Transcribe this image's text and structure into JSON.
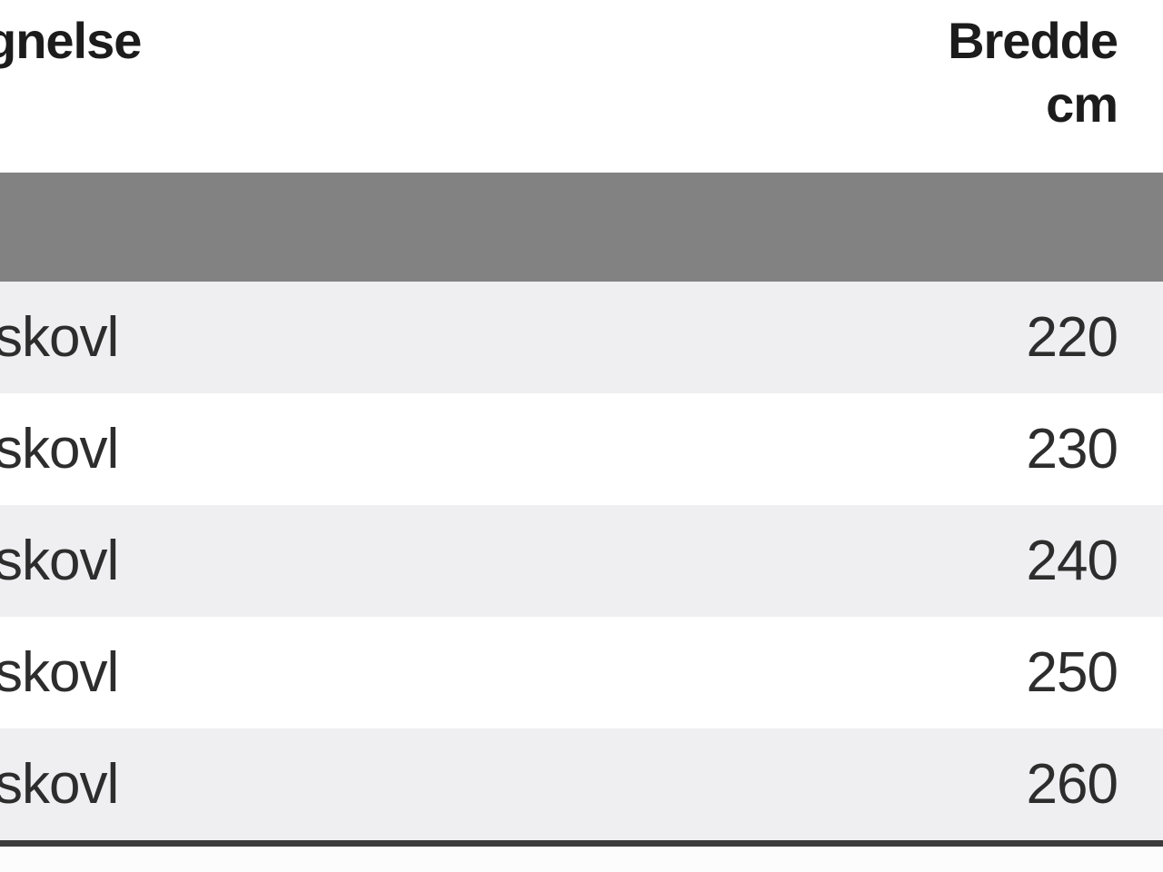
{
  "table": {
    "header": {
      "name_label": "gnelse",
      "width_label_line1": "Bredde",
      "width_label_line2": "cm"
    },
    "rows": [
      {
        "name": "skovl",
        "width_cm": "220"
      },
      {
        "name": "skovl",
        "width_cm": "230"
      },
      {
        "name": "skovl",
        "width_cm": "240"
      },
      {
        "name": "skovl",
        "width_cm": "250"
      },
      {
        "name": "skovl",
        "width_cm": "260"
      }
    ],
    "colors": {
      "band": "#828282",
      "row_alt": "#efeef0",
      "row_white": "#ffffff",
      "header_text": "#1c1c1c",
      "cell_text": "#2d2d2d",
      "bottom_border": "#3c3c3c"
    }
  }
}
